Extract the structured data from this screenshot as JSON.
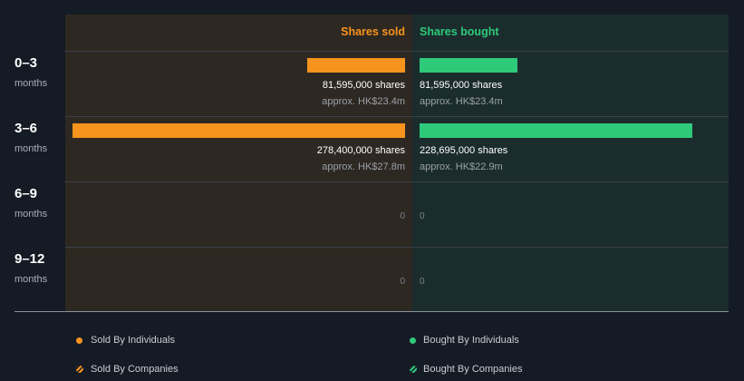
{
  "chart_data": {
    "type": "bar",
    "orientation": "horizontal-butterfly",
    "columns": {
      "sold": "Shares sold",
      "bought": "Shares bought"
    },
    "categories": [
      {
        "label": "0–3",
        "unit": "months"
      },
      {
        "label": "3–6",
        "unit": "months"
      },
      {
        "label": "6–9",
        "unit": "months"
      },
      {
        "label": "9–12",
        "unit": "months"
      }
    ],
    "series": [
      {
        "name": "Shares sold",
        "values": [
          81595000,
          278400000,
          0,
          0
        ],
        "color": "#f7941d"
      },
      {
        "name": "Shares bought",
        "values": [
          81595000,
          228695000,
          0,
          0
        ],
        "color": "#2fc97a"
      }
    ],
    "max_value": 278400000,
    "labels": {
      "sold": [
        {
          "shares": "81,595,000 shares",
          "approx": "approx. HK$23.4m"
        },
        {
          "shares": "278,400,000 shares",
          "approx": "approx. HK$27.8m"
        },
        {
          "zero": "0"
        },
        {
          "zero": "0"
        }
      ],
      "bought": [
        {
          "shares": "81,595,000 shares",
          "approx": "approx. HK$23.4m"
        },
        {
          "shares": "228,695,000 shares",
          "approx": "approx. HK$22.9m"
        },
        {
          "zero": "0"
        },
        {
          "zero": "0"
        }
      ]
    },
    "legend": [
      {
        "label": "Sold By Individuals",
        "color": "#f7941d",
        "style": "solid"
      },
      {
        "label": "Bought By Individuals",
        "color": "#2fc97a",
        "style": "solid"
      },
      {
        "label": "Sold By Companies",
        "color": "#f7941d",
        "style": "hatched"
      },
      {
        "label": "Bought By Companies",
        "color": "#2fc97a",
        "style": "hatched"
      }
    ]
  }
}
